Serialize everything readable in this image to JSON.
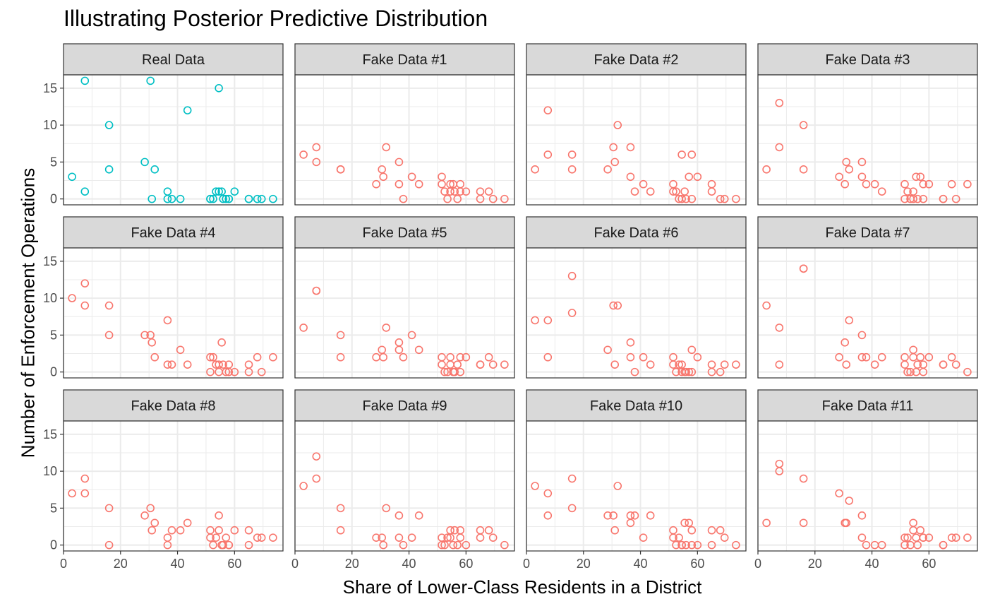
{
  "title": "Illustrating Posterior Predictive Distribution",
  "xlabel": "Share of Lower-Class Residents in a District",
  "ylabel": "Number of Enforcement Operations",
  "colors": {
    "real": "#00BFC4",
    "fake": "#F8766D",
    "strip_bg": "#D9D9D9",
    "grid": "#EBEBEB",
    "border": "#333333"
  },
  "chart_data": {
    "type": "scatter",
    "facet_layout": {
      "ncol": 4,
      "nrow": 3
    },
    "xlim": [
      0,
      77
    ],
    "ylim": [
      -0.8,
      16.8
    ],
    "x_ticks": [
      0,
      20,
      40,
      60
    ],
    "y_ticks": [
      0,
      5,
      10,
      15
    ],
    "grid": true,
    "x": [
      3,
      7.5,
      7.5,
      16,
      16,
      28.5,
      30.5,
      31,
      32,
      36.5,
      36.5,
      38,
      41,
      43.5,
      51.5,
      51.5,
      52.5,
      53.5,
      54.5,
      54.5,
      55.5,
      56,
      57,
      58,
      58,
      60,
      65,
      65,
      68,
      69.5,
      73.5
    ],
    "panels": [
      {
        "label": "Real Data",
        "kind": "real",
        "y": [
          3,
          16,
          1,
          10,
          4,
          5,
          16,
          0,
          4,
          0,
          1,
          0,
          0,
          12,
          0,
          0,
          0,
          1,
          15,
          1,
          1,
          0,
          0,
          0,
          0,
          1,
          0,
          0,
          0,
          0,
          0
        ]
      },
      {
        "label": "Fake Data #1",
        "kind": "fake",
        "y": [
          6,
          7,
          5,
          4,
          4,
          2,
          4,
          3,
          7,
          5,
          2,
          0,
          3,
          2,
          3,
          2,
          1,
          0,
          2,
          1,
          2,
          1,
          0,
          2,
          1,
          1,
          1,
          0,
          1,
          0,
          0
        ]
      },
      {
        "label": "Fake Data #2",
        "kind": "fake",
        "y": [
          4,
          12,
          6,
          6,
          4,
          4,
          7,
          5,
          10,
          7,
          3,
          1,
          2,
          1,
          2,
          1,
          1,
          0,
          0,
          6,
          1,
          0,
          3,
          6,
          0,
          3,
          2,
          1,
          0,
          0,
          0
        ]
      },
      {
        "label": "Fake Data #3",
        "kind": "fake",
        "y": [
          4,
          13,
          7,
          10,
          4,
          3,
          2,
          5,
          4,
          5,
          3,
          2,
          2,
          1,
          2,
          0,
          1,
          0,
          1,
          0,
          3,
          0,
          3,
          2,
          0,
          2,
          0,
          0,
          2,
          0,
          2
        ]
      },
      {
        "label": "Fake Data #4",
        "kind": "fake",
        "y": [
          10,
          12,
          9,
          9,
          5,
          5,
          5,
          4,
          2,
          7,
          1,
          1,
          3,
          1,
          2,
          0,
          2,
          1,
          0,
          1,
          4,
          1,
          0,
          1,
          0,
          0,
          0,
          1,
          2,
          0,
          2
        ]
      },
      {
        "label": "Fake Data #5",
        "kind": "fake",
        "y": [
          6,
          11,
          11,
          5,
          2,
          2,
          3,
          2,
          6,
          4,
          3,
          2,
          5,
          3,
          2,
          1,
          0,
          0,
          2,
          1,
          0,
          0,
          1,
          2,
          0,
          2,
          1,
          1,
          2,
          1,
          1
        ]
      },
      {
        "label": "Fake Data #6",
        "kind": "fake",
        "y": [
          7,
          7,
          2,
          13,
          8,
          3,
          9,
          1,
          9,
          4,
          2,
          0,
          2,
          1,
          2,
          1,
          0,
          1,
          1,
          0,
          0,
          0,
          0,
          0,
          3,
          2,
          1,
          0,
          0,
          1,
          1
        ]
      },
      {
        "label": "Fake Data #7",
        "kind": "fake",
        "y": [
          9,
          6,
          1,
          14,
          14,
          2,
          4,
          1,
          7,
          5,
          2,
          2,
          1,
          2,
          2,
          1,
          0,
          0,
          3,
          2,
          0,
          1,
          2,
          0,
          1,
          2,
          1,
          1,
          2,
          1,
          0
        ]
      },
      {
        "label": "Fake Data #8",
        "kind": "fake",
        "y": [
          7,
          9,
          7,
          5,
          0,
          4,
          5,
          2,
          3,
          1,
          0,
          2,
          2,
          3,
          2,
          1,
          0,
          1,
          2,
          4,
          0,
          0,
          1,
          0,
          0,
          2,
          2,
          0,
          1,
          1,
          1
        ]
      },
      {
        "label": "Fake Data #9",
        "kind": "fake",
        "y": [
          8,
          12,
          9,
          5,
          2,
          1,
          1,
          0,
          5,
          4,
          1,
          0,
          1,
          4,
          1,
          0,
          0,
          1,
          2,
          1,
          0,
          2,
          0,
          1,
          2,
          0,
          2,
          1,
          2,
          1,
          0
        ]
      },
      {
        "label": "Fake Data #10",
        "kind": "fake",
        "y": [
          8,
          7,
          4,
          9,
          5,
          4,
          4,
          2,
          8,
          4,
          3,
          4,
          1,
          4,
          2,
          1,
          0,
          1,
          0,
          0,
          3,
          0,
          3,
          2,
          0,
          0,
          2,
          0,
          2,
          1,
          0
        ]
      },
      {
        "label": "Fake Data #11",
        "kind": "fake",
        "y": [
          3,
          11,
          10,
          9,
          3,
          7,
          3,
          3,
          6,
          4,
          1,
          0,
          0,
          0,
          1,
          0,
          1,
          0,
          2,
          3,
          1,
          0,
          2,
          1,
          1,
          1,
          0,
          0,
          1,
          1,
          1
        ]
      }
    ]
  }
}
